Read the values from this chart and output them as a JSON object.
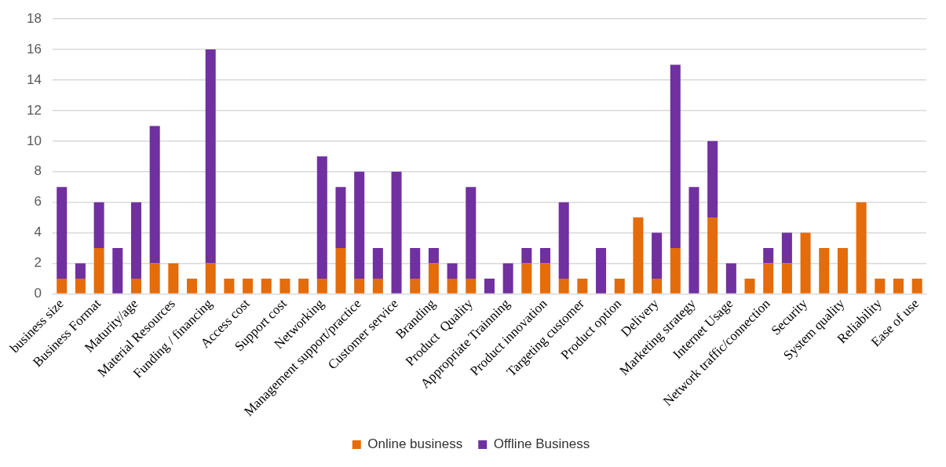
{
  "chart_data": {
    "type": "bar",
    "stacked": true,
    "categories": [
      "business size",
      null,
      "Business Format",
      null,
      "Maturity/age",
      null,
      "Material Resources",
      null,
      "Funding / financing",
      null,
      "Access cost",
      null,
      "Support cost",
      null,
      "Networking",
      null,
      "Management support/practice",
      null,
      "Customer service",
      null,
      "Branding",
      null,
      "Product  Quality",
      null,
      "Appropriate Trainning",
      null,
      "Product innovation",
      null,
      "Targeting customer",
      null,
      "Product option",
      null,
      "Delivery",
      null,
      "Marketing strategy",
      null,
      "Internet Usage",
      null,
      "Network traffic/connection",
      null,
      "Security",
      null,
      "System quality",
      null,
      "Reliability",
      null,
      "Ease of use"
    ],
    "series": [
      {
        "name": "Online business",
        "color": "#e46c0a",
        "values": [
          1,
          1,
          3,
          0,
          1,
          2,
          2,
          1,
          2,
          1,
          1,
          1,
          1,
          1,
          1,
          3,
          1,
          1,
          0,
          1,
          2,
          1,
          1,
          0,
          0,
          2,
          2,
          1,
          1,
          0,
          1,
          5,
          1,
          3,
          0,
          5,
          0,
          1,
          2,
          2,
          4,
          3,
          3,
          6,
          1,
          1,
          1
        ]
      },
      {
        "name": "Offline Business",
        "color": "#7030a0",
        "values": [
          6,
          1,
          3,
          3,
          5,
          9,
          0,
          0,
          14,
          0,
          0,
          0,
          0,
          0,
          8,
          4,
          7,
          2,
          8,
          2,
          1,
          1,
          6,
          1,
          2,
          1,
          1,
          5,
          0,
          3,
          0,
          0,
          3,
          12,
          7,
          5,
          2,
          0,
          1,
          2,
          0,
          0,
          0,
          0,
          0,
          0,
          0
        ]
      }
    ],
    "ylim": [
      0,
      18
    ],
    "yticks": [
      0,
      2,
      4,
      6,
      8,
      10,
      12,
      14,
      16,
      18
    ],
    "grid": "y",
    "legend": "bottom"
  }
}
